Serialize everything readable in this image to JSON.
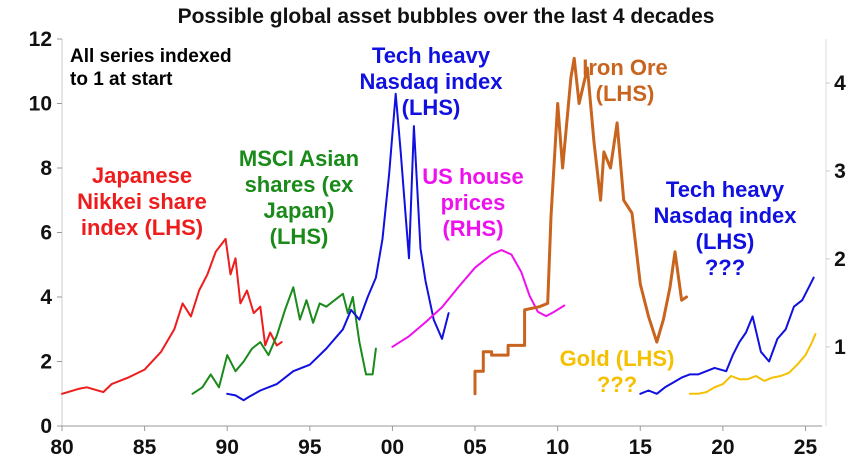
{
  "chart_data": {
    "type": "line",
    "title": "Possible global asset bubbles over the last 4 decades",
    "note": [
      "All series indexed",
      "to 1 at start"
    ],
    "x_ticks": [
      "80",
      "85",
      "90",
      "95",
      "00",
      "05",
      "10",
      "15",
      "20",
      "25"
    ],
    "xlim": [
      1980,
      2026
    ],
    "y_left": {
      "ticks": [
        "0",
        "2",
        "4",
        "6",
        "8",
        "10",
        "12"
      ],
      "ylim": [
        0,
        12
      ]
    },
    "y_right": {
      "ticks": [
        "1",
        "2",
        "3",
        "4"
      ],
      "ylim": [
        0.1,
        4.5
      ]
    },
    "colors": {
      "nikkei": "#ee1c1c",
      "msci": "#1a8a1a",
      "nasdaq": "#1010e0",
      "house": "#ee11ee",
      "iron": "#c8641e",
      "gold": "#f5c000"
    },
    "series": [
      {
        "name": "Japanese Nikkei share index (LHS)",
        "key": "nikkei",
        "axis": "left",
        "x": [
          1980.0,
          1981.0,
          1981.5,
          1982.5,
          1983.0,
          1984.0,
          1985.0,
          1986.0,
          1986.8,
          1987.3,
          1987.8,
          1988.3,
          1988.8,
          1989.3,
          1989.9,
          1990.2,
          1990.5,
          1990.8,
          1991.2,
          1991.6,
          1992.0,
          1992.3,
          1992.6,
          1993.0,
          1993.3
        ],
        "values": [
          1.0,
          1.15,
          1.2,
          1.05,
          1.3,
          1.5,
          1.75,
          2.3,
          3.0,
          3.8,
          3.4,
          4.2,
          4.7,
          5.4,
          5.8,
          4.7,
          5.2,
          3.8,
          4.2,
          3.5,
          3.7,
          2.5,
          2.9,
          2.5,
          2.6
        ]
      },
      {
        "name": "MSCI Asian shares (ex Japan) (LHS)",
        "key": "msci",
        "axis": "left",
        "x": [
          1987.9,
          1988.5,
          1989.0,
          1989.5,
          1990.0,
          1990.5,
          1991.0,
          1991.5,
          1992.0,
          1992.5,
          1993.0,
          1993.5,
          1994.0,
          1994.4,
          1994.8,
          1995.2,
          1995.6,
          1996.0,
          1996.5,
          1997.0,
          1997.3,
          1997.6,
          1998.0,
          1998.4,
          1998.8,
          1999.0
        ],
        "values": [
          1.0,
          1.2,
          1.6,
          1.2,
          2.2,
          1.7,
          2.0,
          2.4,
          2.6,
          2.2,
          2.8,
          3.6,
          4.3,
          3.3,
          3.9,
          3.2,
          3.8,
          3.7,
          3.9,
          4.1,
          3.5,
          4.0,
          2.6,
          1.6,
          1.6,
          2.4
        ]
      },
      {
        "name": "Tech heavy Nasdaq index (LHS)",
        "key": "nasdaq",
        "axis": "left",
        "x": [
          1990.0,
          1990.5,
          1991.0,
          1991.3,
          1992.0,
          1993.0,
          1994.0,
          1995.0,
          1996.0,
          1997.0,
          1997.5,
          1998.0,
          1998.5,
          1999.0,
          1999.4,
          1999.8,
          2000.2,
          2000.5,
          2000.8,
          2001.0,
          2001.3,
          2001.7,
          2002.0,
          2002.5,
          2003.0,
          2003.4
        ],
        "values": [
          1.0,
          0.95,
          0.8,
          0.9,
          1.1,
          1.3,
          1.7,
          1.9,
          2.4,
          3.0,
          3.6,
          3.3,
          4.0,
          4.6,
          5.8,
          7.8,
          10.3,
          8.5,
          6.5,
          5.2,
          9.3,
          5.5,
          4.5,
          3.3,
          2.7,
          3.5
        ]
      },
      {
        "name": "US house prices (RHS)",
        "key": "house",
        "axis": "right",
        "x": [
          2000.0,
          2001.0,
          2002.0,
          2003.0,
          2004.0,
          2005.0,
          2006.0,
          2006.6,
          2007.2,
          2007.8,
          2008.3,
          2008.8,
          2009.3,
          2009.8,
          2010.4
        ],
        "values": [
          1.0,
          1.12,
          1.28,
          1.45,
          1.68,
          1.9,
          2.05,
          2.1,
          2.05,
          1.85,
          1.58,
          1.4,
          1.35,
          1.4,
          1.47
        ]
      },
      {
        "name": "Iron Ore (LHS)",
        "key": "iron",
        "axis": "left",
        "x": [
          2005.0,
          2005.0,
          2005.5,
          2005.5,
          2006.0,
          2006.0,
          2007.0,
          2007.0,
          2008.0,
          2008.0,
          2008.9,
          2009.4,
          2009.6,
          2010.0,
          2010.3,
          2010.8,
          2011.0,
          2011.3,
          2011.8,
          2012.2,
          2012.6,
          2012.8,
          2013.2,
          2013.6,
          2014.0,
          2014.5,
          2015.0,
          2015.5,
          2016.0,
          2016.4,
          2016.8,
          2017.1,
          2017.5,
          2017.8
        ],
        "values": [
          1.0,
          1.7,
          1.7,
          2.3,
          2.3,
          2.2,
          2.2,
          2.5,
          2.5,
          3.6,
          3.7,
          3.8,
          6.5,
          10.0,
          8.0,
          10.8,
          11.4,
          10.0,
          11.1,
          8.8,
          7.0,
          8.5,
          8.0,
          9.4,
          7.0,
          6.6,
          4.4,
          3.4,
          2.6,
          3.3,
          4.3,
          5.4,
          3.9,
          4.0
        ]
      },
      {
        "name": "Tech heavy Nasdaq index (LHS) ???",
        "key": "nasdaq",
        "axis": "left",
        "x": [
          2015.0,
          2015.5,
          2016.0,
          2016.5,
          2017.0,
          2017.5,
          2018.0,
          2018.5,
          2019.0,
          2019.5,
          2020.2,
          2020.6,
          2021.0,
          2021.4,
          2021.8,
          2022.3,
          2022.8,
          2023.3,
          2023.8,
          2024.3,
          2024.8,
          2025.2,
          2025.5
        ],
        "values": [
          1.0,
          1.1,
          1.0,
          1.2,
          1.35,
          1.5,
          1.6,
          1.6,
          1.7,
          1.8,
          1.7,
          2.2,
          2.6,
          2.9,
          3.4,
          2.3,
          2.0,
          2.7,
          3.0,
          3.7,
          3.9,
          4.3,
          4.6
        ]
      },
      {
        "name": "Gold (LHS) ???",
        "key": "gold",
        "axis": "left",
        "x": [
          2018.0,
          2018.5,
          2019.0,
          2019.5,
          2020.0,
          2020.5,
          2021.0,
          2021.5,
          2022.0,
          2022.5,
          2023.0,
          2023.5,
          2024.0,
          2024.5,
          2025.0,
          2025.4,
          2025.6
        ],
        "values": [
          1.0,
          1.0,
          1.05,
          1.2,
          1.3,
          1.55,
          1.45,
          1.45,
          1.55,
          1.4,
          1.5,
          1.55,
          1.65,
          1.9,
          2.2,
          2.6,
          2.85
        ]
      }
    ],
    "labels": [
      {
        "key": "nikkei",
        "lines": [
          "Japanese",
          "Nikkei share",
          "index (LHS)"
        ]
      },
      {
        "key": "msci",
        "lines": [
          "MSCI Asian",
          "shares (ex",
          "Japan)",
          "(LHS)"
        ]
      },
      {
        "key": "nasdaq",
        "lines": [
          "Tech heavy",
          "Nasdaq index",
          "(LHS)"
        ]
      },
      {
        "key": "house",
        "lines": [
          "US house",
          "prices",
          "(RHS)"
        ]
      },
      {
        "key": "iron",
        "lines": [
          "Iron Ore",
          "(LHS)"
        ]
      },
      {
        "key": "nasdaq",
        "lines": [
          "Tech heavy",
          "Nasdaq index",
          "(LHS)",
          "???"
        ]
      },
      {
        "key": "gold",
        "lines": [
          "Gold (LHS)",
          "???"
        ]
      }
    ]
  }
}
